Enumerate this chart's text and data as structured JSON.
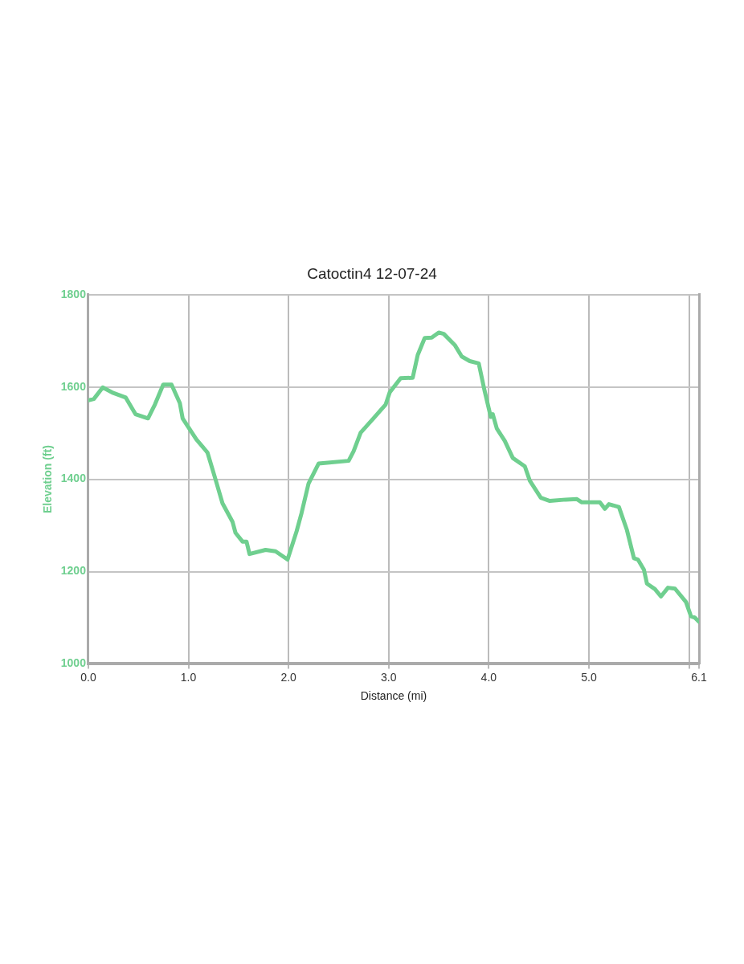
{
  "chart_data": {
    "type": "line",
    "title": "Catoctin4 12-07-24",
    "xlabel": "Distance (mi)",
    "ylabel": "Elevation (ft)",
    "xlim": [
      0,
      6.1
    ],
    "xticks": [
      {
        "value": 0,
        "label": "0.0"
      },
      {
        "value": 1,
        "label": "1.0"
      },
      {
        "value": 2,
        "label": "2.0"
      },
      {
        "value": 3,
        "label": "3.0"
      },
      {
        "value": 4,
        "label": "4.0"
      },
      {
        "value": 5,
        "label": "5.0"
      },
      {
        "value": 6,
        "label": null
      },
      6.1
    ],
    "ylim": [
      1000,
      1800
    ],
    "yticks": [
      1000,
      1200,
      1400,
      1600,
      1800
    ],
    "grid": true,
    "legend": false,
    "marker": "none",
    "line_style": "solid",
    "series": [
      {
        "color": "#6fcf8f",
        "x": [
          0,
          0.055,
          0.144,
          0.249,
          0.374,
          0.471,
          0.596,
          0.665,
          0.748,
          0.831,
          0.914,
          0.942,
          1.08,
          1.19,
          1.27,
          1.34,
          1.44,
          1.47,
          1.54,
          1.58,
          1.61,
          1.77,
          1.87,
          1.99,
          2.08,
          2.13,
          2.2,
          2.3,
          2.6,
          2.65,
          2.72,
          2.86,
          2.97,
          3.01,
          3.12,
          3.24,
          3.29,
          3.36,
          3.43,
          3.5,
          3.55,
          3.66,
          3.73,
          3.81,
          3.9,
          3.96,
          4.02,
          4.04,
          4.08,
          4.16,
          4.24,
          4.36,
          4.41,
          4.52,
          4.61,
          4.77,
          4.88,
          4.93,
          5.11,
          5.16,
          5.2,
          5.3,
          5.38,
          5.45,
          5.49,
          5.55,
          5.58,
          5.66,
          5.72,
          5.79,
          5.86,
          5.97,
          6.02,
          6.06,
          6.1
        ],
        "values": [
          1571,
          1574,
          1599,
          1587,
          1577,
          1541,
          1532,
          1562,
          1605,
          1605,
          1565,
          1532,
          1486,
          1458,
          1400,
          1348,
          1308,
          1284,
          1265,
          1265,
          1238,
          1247,
          1244,
          1226,
          1287,
          1327,
          1391,
          1434,
          1440,
          1461,
          1501,
          1535,
          1562,
          1588,
          1619,
          1620,
          1669,
          1706,
          1707,
          1718,
          1715,
          1691,
          1666,
          1656,
          1651,
          1590,
          1535,
          1541,
          1510,
          1483,
          1446,
          1428,
          1397,
          1360,
          1353,
          1356,
          1357,
          1350,
          1350,
          1336,
          1346,
          1340,
          1290,
          1229,
          1226,
          1204,
          1174,
          1162,
          1146,
          1165,
          1163,
          1134,
          1103,
          1100,
          1091
        ]
      }
    ]
  }
}
